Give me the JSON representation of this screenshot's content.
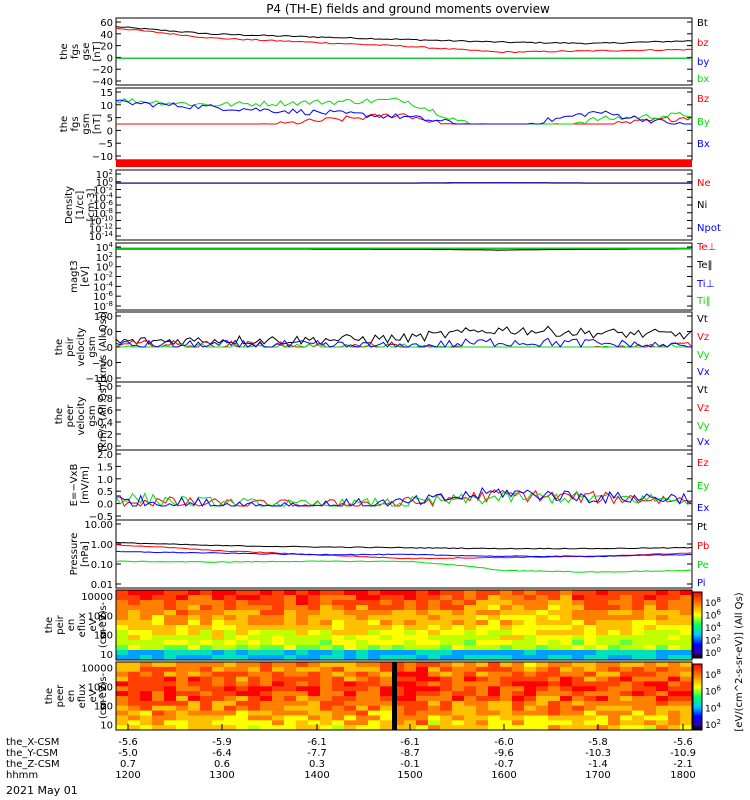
{
  "title": "P4 (TH-E) fields and ground moments overview",
  "date_label": "2021 May 01",
  "colors": {
    "black": "#000000",
    "red": "#ff0000",
    "green": "#00dd00",
    "blue": "#0000ff"
  },
  "ephemeris": {
    "row_labels": [
      "the_X-CSM",
      "the_Y-CSM",
      "the_Z-CSM",
      "hhmm"
    ],
    "columns": [
      [
        "-5.6",
        "-5.0",
        "0.7",
        "1200"
      ],
      [
        "-5.9",
        "-6.4",
        "0.6",
        "1300"
      ],
      [
        "-6.1",
        "-7.7",
        "0.3",
        "1400"
      ],
      [
        "-6.1",
        "-8.7",
        "-0.1",
        "1500"
      ],
      [
        "-6.0",
        "-9.6",
        "-0.7",
        "1600"
      ],
      [
        "-5.8",
        "-10.3",
        "-1.4",
        "1700"
      ],
      [
        "-5.6",
        "-10.9",
        "-2.1",
        "1800"
      ]
    ]
  },
  "colorbars": [
    {
      "label": "[eV/(cm^2-s-sr-eV)] (All Qs)",
      "ticks": [
        "10^8",
        "10^6",
        "10^4",
        "10^2",
        "10^0"
      ]
    },
    {
      "label": "[eV/(cm^2-s-sr-eV)] (All Qs)",
      "ticks": [
        "10^8",
        "10^6",
        "10^4",
        "10^2"
      ]
    }
  ],
  "chart_data": [
    {
      "type": "line",
      "panel": "fgs_gse",
      "ylabel": [
        "the",
        "fgs",
        "gse",
        "[nT]"
      ],
      "ylim": [
        -40,
        60
      ],
      "yticks": [
        "60",
        "40",
        "20",
        "0",
        "−20",
        "−40"
      ],
      "x": [
        "1200",
        "1300",
        "1400",
        "1500",
        "1600",
        "1700",
        "1800"
      ],
      "series": [
        {
          "name": "Bt",
          "color": "black",
          "values": [
            47,
            36,
            32,
            28,
            24,
            22,
            26
          ]
        },
        {
          "name": "bz",
          "color": "red",
          "values": [
            45,
            30,
            24,
            18,
            9,
            11,
            13
          ]
        },
        {
          "name": "by",
          "color": "blue",
          "values": [
            -3,
            -4,
            -5,
            -5,
            -6,
            -6,
            -7
          ]
        },
        {
          "name": "bx",
          "color": "green",
          "values": [
            -15,
            -16,
            -17,
            -17,
            -20,
            -20,
            -19
          ]
        }
      ]
    },
    {
      "type": "line",
      "panel": "fgs_gsm",
      "ylabel": [
        "the",
        "fgs",
        "gsm",
        "[nT]"
      ],
      "ylim": [
        -15,
        15
      ],
      "yticks": [
        "15",
        "10",
        "5",
        "0",
        "−5",
        "−10"
      ],
      "x": [
        "1200",
        "1300",
        "1400",
        "1500",
        "1600",
        "1700",
        "1800"
      ],
      "series": [
        {
          "name": "Bz",
          "color": "red",
          "values": [
            -6,
            -3,
            1,
            4,
            -6,
            -1,
            3
          ]
        },
        {
          "name": "By",
          "color": "green",
          "values": [
            10,
            8,
            9,
            10,
            -5,
            2,
            4
          ]
        },
        {
          "name": "Bx",
          "color": "blue",
          "values": [
            9,
            7,
            5,
            3,
            -2,
            5,
            -1
          ]
        }
      ]
    },
    {
      "type": "line",
      "panel": "density",
      "ylabel": [
        "Density",
        "[1/cc]",
        "[cm-3]"
      ],
      "yticks": [
        "10^2",
        "10^0",
        "10^-2",
        "10^-4",
        "10^-6",
        "10^-8",
        "10^-10",
        "10^-12",
        "10^-14"
      ],
      "x": [
        "1200",
        "1300",
        "1400",
        "1500",
        "1600",
        "1700",
        "1800"
      ],
      "series": [
        {
          "name": "Ne",
          "color": "red",
          "values": [
            1,
            1,
            1,
            1,
            1.4,
            1,
            1
          ]
        },
        {
          "name": "Ni",
          "color": "black",
          "values": [
            1,
            1,
            1,
            1,
            1.4,
            1,
            1
          ]
        },
        {
          "name": "Npot",
          "color": "blue",
          "values": [
            0.8,
            0.8,
            0.8,
            0.8,
            1.1,
            0.8,
            0.8
          ]
        }
      ]
    },
    {
      "type": "line",
      "panel": "temperature",
      "ylabel": [
        "magt3",
        "[eV]"
      ],
      "yticks": [
        "10^4",
        "10^2",
        "10^0",
        "10^-2",
        "10^-4",
        "10^-6",
        "10^-8"
      ],
      "x": [
        "1200",
        "1300",
        "1400",
        "1500",
        "1600",
        "1700",
        "1800"
      ],
      "series": [
        {
          "name": "Te⊥",
          "color": "red",
          "values": [
            3000,
            3000,
            3000,
            2500,
            800,
            2500,
            4000
          ]
        },
        {
          "name": "Te‖",
          "color": "black",
          "values": [
            3000,
            3000,
            3000,
            2500,
            900,
            2500,
            4000
          ]
        },
        {
          "name": "Ti⊥",
          "color": "blue",
          "values": [
            8000,
            8000,
            8000,
            8000,
            8000,
            8000,
            8000
          ]
        },
        {
          "name": "Ti‖",
          "color": "green",
          "values": [
            6000,
            6000,
            6000,
            6000,
            6000,
            6000,
            6000
          ]
        }
      ]
    },
    {
      "type": "line",
      "panel": "peir_velocity",
      "ylabel": [
        "the",
        "peir",
        "velocity",
        "gsm",
        "[km/s (All Qs)]"
      ],
      "ylim": [
        -100,
        100
      ],
      "yticks": [
        "100",
        "50",
        "0",
        "−50",
        "−100"
      ],
      "x": [
        "1200",
        "1300",
        "1400",
        "1500",
        "1600",
        "1700",
        "1800"
      ],
      "series": [
        {
          "name": "Vt",
          "color": "black",
          "values": [
            15,
            20,
            20,
            25,
            50,
            40,
            35
          ]
        },
        {
          "name": "Vz",
          "color": "red",
          "values": [
            5,
            5,
            0,
            -5,
            -20,
            -10,
            5
          ]
        },
        {
          "name": "Vy",
          "color": "green",
          "values": [
            -5,
            -5,
            -5,
            -5,
            -15,
            -10,
            -5
          ]
        },
        {
          "name": "Vx",
          "color": "blue",
          "values": [
            5,
            5,
            5,
            0,
            15,
            10,
            0
          ]
        }
      ]
    },
    {
      "type": "line",
      "panel": "peer_velocity",
      "ylabel": [
        "the",
        "peer",
        "velocity",
        "gsm",
        "[km/s (All Qs)]"
      ],
      "ylim": [
        0,
        1
      ],
      "yticks": [
        "1.0",
        "0.8",
        "0.6",
        "0.4",
        "0.2",
        "0.0"
      ],
      "x": [],
      "series": [
        {
          "name": "Vt",
          "color": "black",
          "values": []
        },
        {
          "name": "Vz",
          "color": "red",
          "values": []
        },
        {
          "name": "Vy",
          "color": "green",
          "values": []
        },
        {
          "name": "Vx",
          "color": "blue",
          "values": []
        }
      ]
    },
    {
      "type": "line",
      "panel": "efield",
      "ylabel": [
        "E=−VxB",
        "[mV/m]"
      ],
      "ylim": [
        -0.5,
        2.0
      ],
      "yticks": [
        "2.0",
        "1.5",
        "1.0",
        "0.5",
        "0.0",
        "−0.5"
      ],
      "x": [
        "1200",
        "1300",
        "1400",
        "1500",
        "1600",
        "1700",
        "1800"
      ],
      "series": [
        {
          "name": "Ez",
          "color": "red",
          "values": [
            0.2,
            0.05,
            0.0,
            0.1,
            0.4,
            0.3,
            0.2
          ]
        },
        {
          "name": "Ey",
          "color": "green",
          "values": [
            0.3,
            0.1,
            0.0,
            0.1,
            0.3,
            0.3,
            0.2
          ]
        },
        {
          "name": "Ex",
          "color": "blue",
          "values": [
            0.2,
            0.05,
            0.0,
            0.1,
            0.5,
            0.3,
            0.3
          ]
        }
      ]
    },
    {
      "type": "line",
      "panel": "pressure",
      "ylabel": [
        "Pressure",
        "[nPa]"
      ],
      "yscale": "log",
      "ylim": [
        0.01,
        10
      ],
      "yticks": [
        "10.00",
        "1.00",
        "0.10",
        "0.01"
      ],
      "x": [
        "1200",
        "1300",
        "1400",
        "1500",
        "1600",
        "1700",
        "1800"
      ],
      "series": [
        {
          "name": "Pt",
          "color": "black",
          "values": [
            1.0,
            0.75,
            0.65,
            0.6,
            0.55,
            0.55,
            0.6
          ]
        },
        {
          "name": "Pb",
          "color": "red",
          "values": [
            0.8,
            0.45,
            0.3,
            0.2,
            0.22,
            0.25,
            0.35
          ]
        },
        {
          "name": "Pe",
          "color": "green",
          "values": [
            0.15,
            0.14,
            0.15,
            0.15,
            0.06,
            0.05,
            0.06
          ]
        },
        {
          "name": "Pi",
          "color": "blue",
          "values": [
            0.4,
            0.35,
            0.3,
            0.3,
            0.25,
            0.25,
            0.3
          ]
        }
      ]
    },
    {
      "type": "heatmap",
      "panel": "peir_en_eflux",
      "ylabel": [
        "the",
        "peir",
        "en",
        "eflux",
        "eV",
        "(cm^2-s-",
        "sr-eV)"
      ],
      "yscale": "log",
      "ylim": [
        5,
        20000
      ],
      "yticks": [
        "10000",
        "1000",
        "100",
        "10"
      ]
    },
    {
      "type": "heatmap",
      "panel": "peer_en_eflux",
      "ylabel": [
        "the",
        "peer",
        "en",
        "eflux",
        "eV",
        "(cm^2-s-",
        "sr-eV)"
      ],
      "yscale": "log",
      "ylim": [
        5,
        20000
      ],
      "yticks": [
        "10000",
        "1000",
        "100",
        "10"
      ]
    }
  ]
}
